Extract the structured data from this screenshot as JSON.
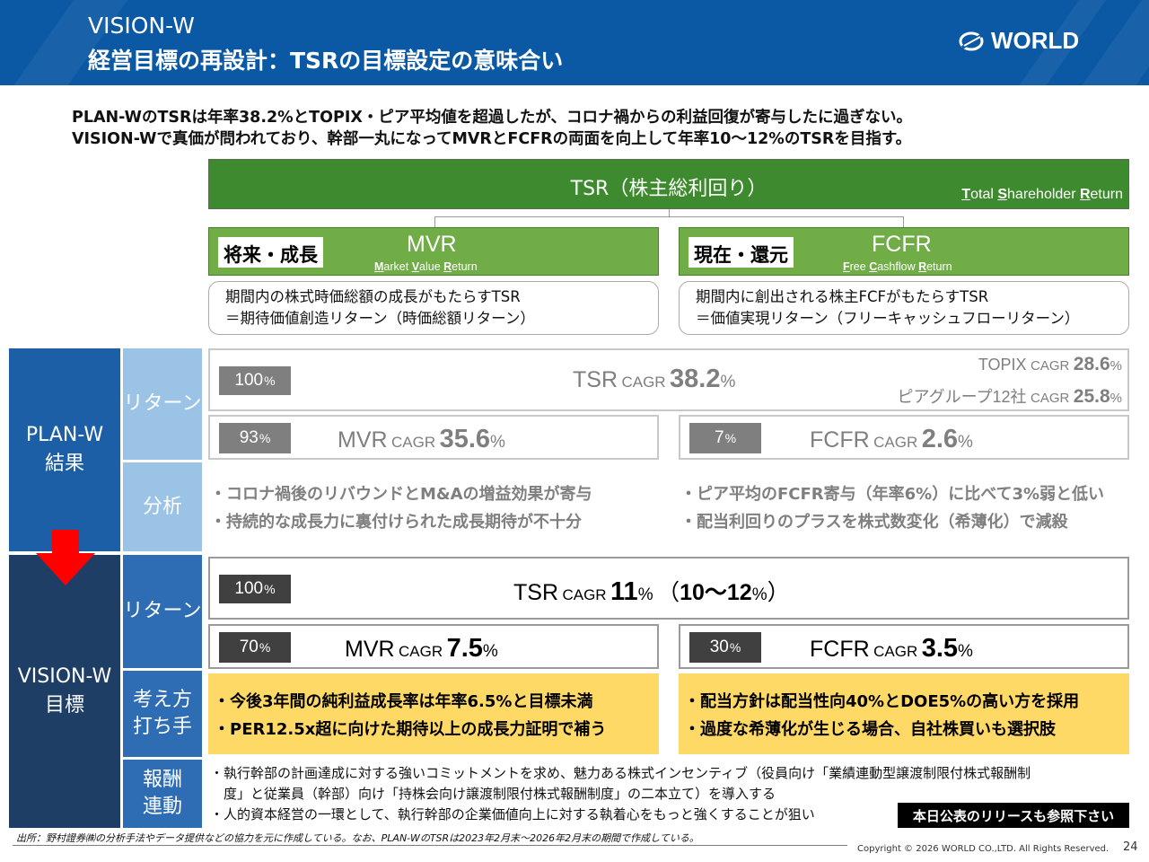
{
  "header": {
    "title_line1": "VISION-W",
    "title_line2": "経営目標の再設計：TSRの目標設定の意味合い",
    "logo_text": "WORLD"
  },
  "intro": {
    "line1": "PLAN-WのTSRは年率38.2%とTOPIX・ピア平均値を超過したが、コロナ禍からの利益回復が寄与したに過ぎない。",
    "line2": "VISION-Wで真価が問われており、幹部一丸になってMVRとFCFRの両面を向上して年率10～12%のTSRを目指す。"
  },
  "tsr_banner": {
    "title": "TSR（株主総利回り）",
    "sub": [
      "T",
      "otal ",
      "S",
      "hareholder ",
      "R",
      "eturn"
    ]
  },
  "mvr_box": {
    "tag": "将来・成長",
    "name": "MVR",
    "sub": [
      "M",
      "arket ",
      "V",
      "alue ",
      "R",
      "eturn"
    ],
    "desc1": "期間内の株式時価総額の成長がもたらすTSR",
    "desc2": "＝期待価値創造リターン（時価総額リターン）"
  },
  "fcfr_box": {
    "tag": "現在・還元",
    "name": "FCFR",
    "sub": [
      "F",
      "ree ",
      "C",
      "ashflow ",
      "R",
      "eturn"
    ],
    "desc1": "期間内に創出される株主FCFがもたらすTSR",
    "desc2": "＝価値実現リターン（フリーキャッシュフローリターン）"
  },
  "labels": {
    "planw": [
      "PLAN-W",
      "結果"
    ],
    "visionw": [
      "VISION-W",
      "目標"
    ],
    "return": "リターン",
    "analysis": "分析",
    "approach": [
      "考え方",
      "打ち手"
    ],
    "remuneration": [
      "報酬",
      "連動"
    ]
  },
  "planw": {
    "tsr": {
      "pct": "100",
      "pct_unit": "%",
      "name": "TSR",
      "cagr": "CAGR",
      "value": "38.2",
      "unit": "%"
    },
    "topix": {
      "name": "TOPIX",
      "cagr": "CAGR",
      "value": "28.6",
      "unit": "%"
    },
    "peer": {
      "name": "ピアグループ12社",
      "cagr": "CAGR",
      "value": "25.8",
      "unit": "%"
    },
    "mvr": {
      "pct": "93",
      "pct_unit": "%",
      "name": "MVR",
      "cagr": "CAGR",
      "value": "35.6",
      "unit": "%"
    },
    "fcfr": {
      "pct": "7",
      "pct_unit": "%",
      "name": "FCFR",
      "cagr": "CAGR",
      "value": "2.6",
      "unit": "%"
    },
    "analysis_left": [
      "・コロナ禍後のリバウンドとM&Aの増益効果が寄与",
      "・持続的な成長力に裏付けられた成長期待が不十分"
    ],
    "analysis_right": [
      "・ピア平均のFCFR寄与（年率6%）に比べて3%弱と低い",
      "・配当利回りのプラスを株式数変化（希薄化）で減殺"
    ]
  },
  "visionw": {
    "tsr": {
      "pct": "100",
      "pct_unit": "%",
      "name": "TSR",
      "cagr": "CAGR",
      "value": "11",
      "unit": "%",
      "range_open": "（",
      "range": "10～12",
      "range_unit": "%",
      "range_close": "）"
    },
    "mvr": {
      "pct": "70",
      "pct_unit": "%",
      "name": "MVR",
      "cagr": "CAGR",
      "value": "7.5",
      "unit": "%"
    },
    "fcfr": {
      "pct": "30",
      "pct_unit": "%",
      "name": "FCFR",
      "cagr": "CAGR",
      "value": "3.5",
      "unit": "%"
    },
    "approach_left": [
      "・今後3年間の純利益成長率は年率6.5%と目標未満",
      "・PER12.5x超に向けた期待以上の成長力証明で補う"
    ],
    "approach_right": [
      "・配当方針は配当性向40%とDOE5%の高い方を採用",
      "・過度な希薄化が生じる場合、自社株買いも選択肢"
    ],
    "remuneration": [
      "・執行幹部の計画達成に対する強いコミットメントを求め、魅力ある株式インセンティブ（役員向け「業績連動型譲渡制限付株式報酬制",
      "　度」と従業員（幹部）向け「持株会向け譲渡制限付株式報酬制度」の二本立て）を導入する",
      "・人的資本経営の一環として、執行幹部の企業価値向上に対する執着心をもっと強くすることが狙い"
    ],
    "release_note": "本日公表のリリースも参照下さい"
  },
  "footer": {
    "footnote": "出所：野村證券㈱の分析手法やデータ提供などの協力を元に作成している。なお、PLAN-WのTSRは2023年2月末～2026年2月末の期間で作成している。",
    "copyright": "Copyright © 2026 WORLD CO.,LTD. All Rights Reserved.",
    "page": "24"
  },
  "colors": {
    "header_blue": "#0b59a4",
    "tsr_green": "#3e8a2e",
    "box_green": "#70ad47",
    "label_blue": "#1d5fa6",
    "label_navy": "#1f3e66",
    "label_light": "#9bc3e6",
    "highlight_yellow": "#ffd966",
    "arrow_red": "#ff0000"
  }
}
